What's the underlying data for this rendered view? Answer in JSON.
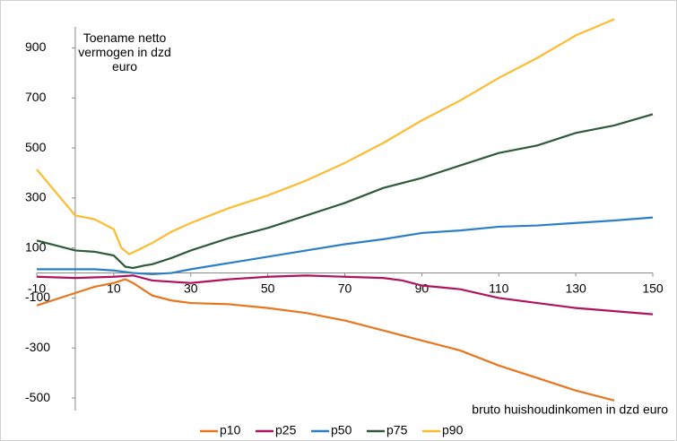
{
  "chart_data": {
    "type": "line",
    "y_label": "Toename netto vermogen in dzd euro",
    "x_label": "bruto huishoudinkomen in dzd euro",
    "xlim": [
      -10,
      150
    ],
    "xticks": [
      -10,
      10,
      30,
      50,
      70,
      90,
      110,
      130,
      150
    ],
    "ylim": [
      -550,
      1020
    ],
    "yticks": [
      -500,
      -300,
      -100,
      100,
      300,
      500,
      700,
      900
    ],
    "legend": "bottom",
    "series": [
      {
        "name": "p10",
        "color": "#e8761e",
        "x": [
          -10,
          0,
          5,
          10,
          13,
          15,
          20,
          25,
          30,
          40,
          50,
          60,
          70,
          80,
          90,
          100,
          110,
          120,
          130,
          140
        ],
        "values": [
          -130,
          -80,
          -55,
          -40,
          -25,
          -40,
          -90,
          -110,
          -120,
          -125,
          -140,
          -160,
          -190,
          -230,
          -270,
          -310,
          -370,
          -420,
          -470,
          -510
        ]
      },
      {
        "name": "p25",
        "color": "#b0125f",
        "x": [
          -10,
          0,
          10,
          15,
          20,
          30,
          40,
          50,
          60,
          70,
          80,
          85,
          90,
          100,
          110,
          120,
          130,
          150
        ],
        "values": [
          -15,
          -20,
          -15,
          -10,
          -30,
          -40,
          -25,
          -15,
          -10,
          -15,
          -20,
          -30,
          -50,
          -65,
          -100,
          -120,
          -140,
          -165
        ]
      },
      {
        "name": "p50",
        "color": "#2a7fc8",
        "x": [
          -10,
          5,
          10,
          15,
          20,
          25,
          30,
          40,
          50,
          60,
          70,
          80,
          90,
          100,
          110,
          120,
          130,
          140,
          150
        ],
        "values": [
          15,
          15,
          10,
          0,
          -5,
          0,
          15,
          40,
          65,
          90,
          115,
          135,
          160,
          170,
          185,
          190,
          200,
          210,
          222
        ]
      },
      {
        "name": "p75",
        "color": "#2f5a3a",
        "x": [
          -10,
          0,
          5,
          10,
          13,
          15,
          18,
          20,
          25,
          30,
          40,
          50,
          60,
          70,
          80,
          90,
          100,
          110,
          120,
          130,
          140,
          150
        ],
        "values": [
          130,
          90,
          85,
          70,
          25,
          20,
          30,
          35,
          60,
          90,
          140,
          180,
          230,
          280,
          340,
          380,
          430,
          480,
          510,
          560,
          590,
          635
        ]
      },
      {
        "name": "p90",
        "color": "#fdbb2f",
        "x": [
          -10,
          0,
          5,
          10,
          12,
          14,
          16,
          20,
          25,
          30,
          40,
          50,
          60,
          70,
          80,
          90,
          100,
          110,
          120,
          130,
          140
        ],
        "values": [
          414,
          230,
          215,
          175,
          100,
          75,
          90,
          120,
          165,
          200,
          260,
          310,
          370,
          440,
          520,
          610,
          690,
          780,
          860,
          950,
          1015
        ]
      }
    ]
  }
}
